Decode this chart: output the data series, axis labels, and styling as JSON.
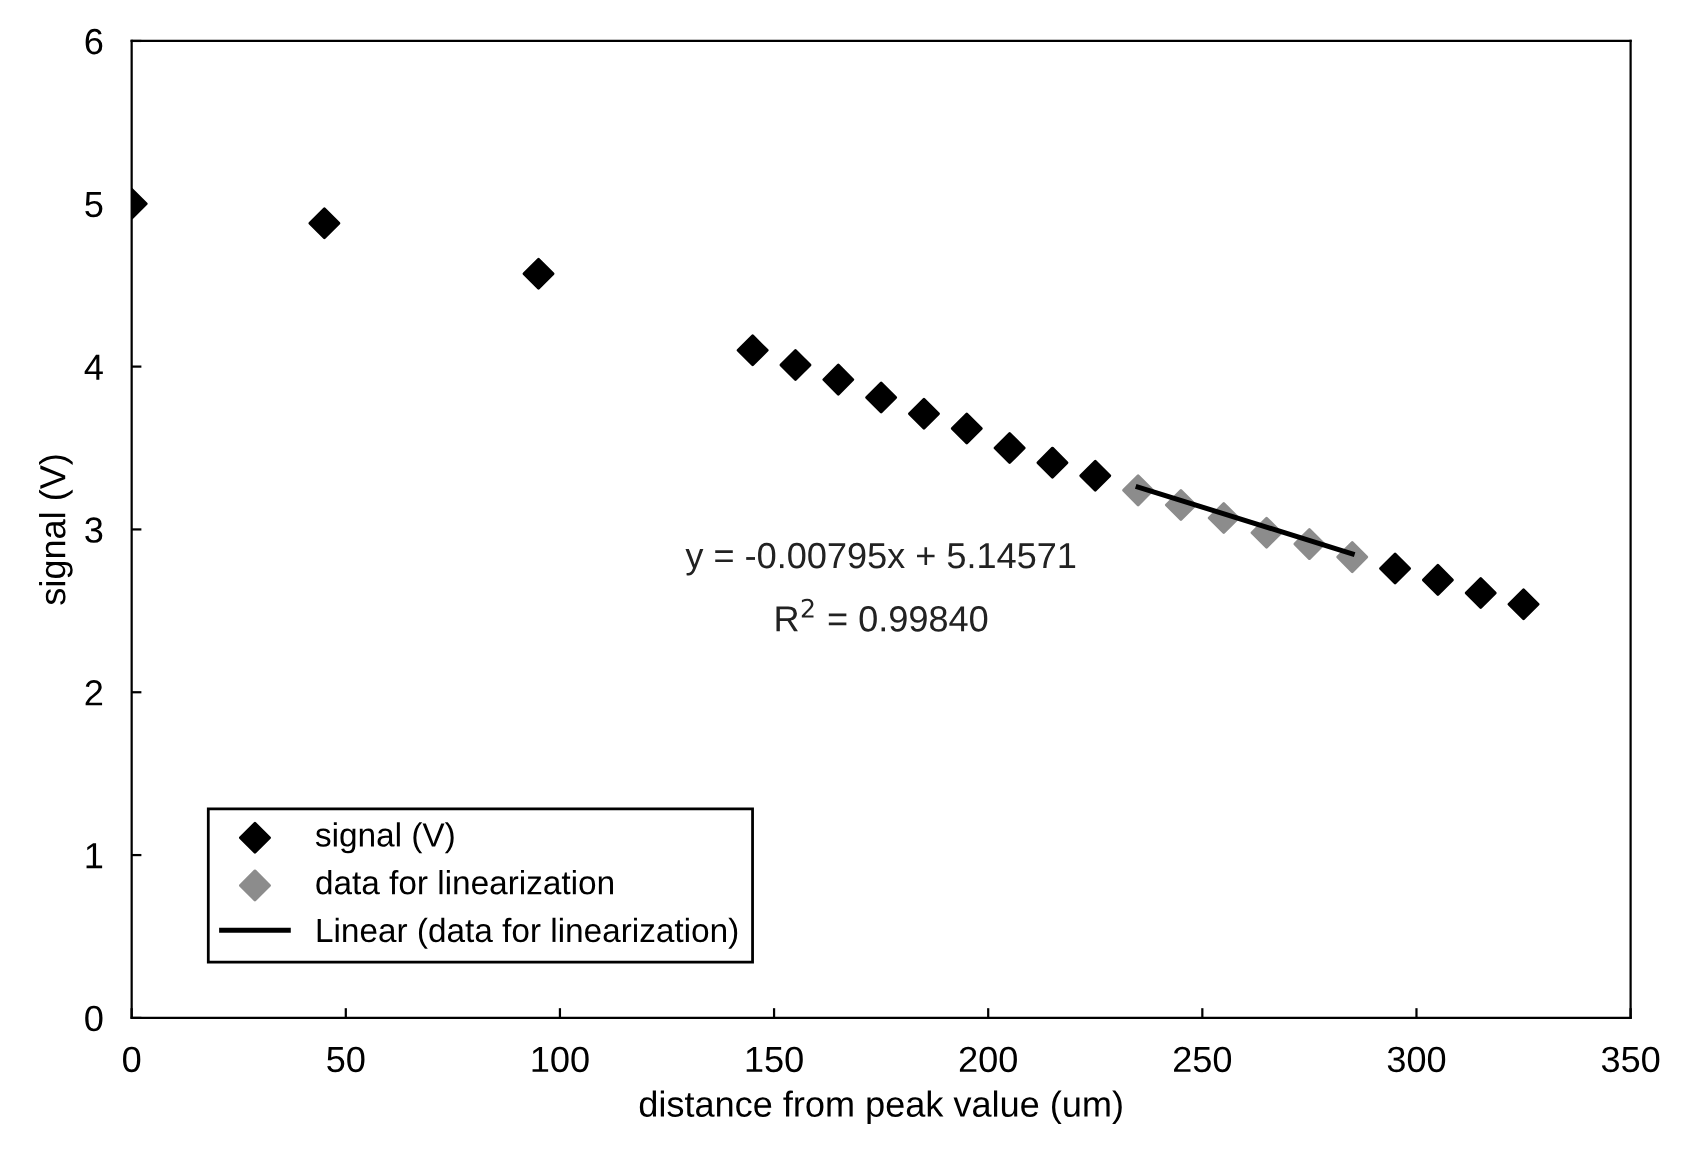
{
  "chart_data": {
    "type": "scatter",
    "xlabel": "distance from peak value (um)",
    "ylabel": "signal (V)",
    "xlim": [
      0,
      350
    ],
    "ylim": [
      0,
      6
    ],
    "xticks": [
      0,
      50,
      100,
      150,
      200,
      250,
      300,
      350
    ],
    "yticks": [
      0,
      1,
      2,
      3,
      4,
      5,
      6
    ],
    "grid": false,
    "legend": "bottom left",
    "series": [
      {
        "name": "signal (V)",
        "color": "#000000",
        "marker": "diamond",
        "x": [
          0,
          45,
          95,
          145,
          155,
          165,
          175,
          185,
          195,
          205,
          215,
          225,
          295,
          305,
          315,
          325
        ],
        "values": [
          5.0,
          4.88,
          4.57,
          4.1,
          4.01,
          3.92,
          3.81,
          3.71,
          3.62,
          3.5,
          3.41,
          3.33,
          2.76,
          2.69,
          2.61,
          2.54
        ]
      },
      {
        "name": "data for linearization",
        "color": "#8c8c8c",
        "marker": "diamond",
        "x": [
          235,
          245,
          255,
          265,
          275,
          285
        ],
        "values": [
          3.24,
          3.15,
          3.07,
          2.98,
          2.91,
          2.83
        ]
      },
      {
        "name": "Linear (data for linearization)",
        "color": "#000000",
        "type": "line",
        "marker": "none",
        "line_style": "solid",
        "x": [
          235,
          285
        ],
        "values": [
          3.26,
          2.85
        ]
      }
    ],
    "annotations": [
      "y = -0.00795x + 5.14571",
      "R$^{2}$ = 0.99840"
    ]
  }
}
